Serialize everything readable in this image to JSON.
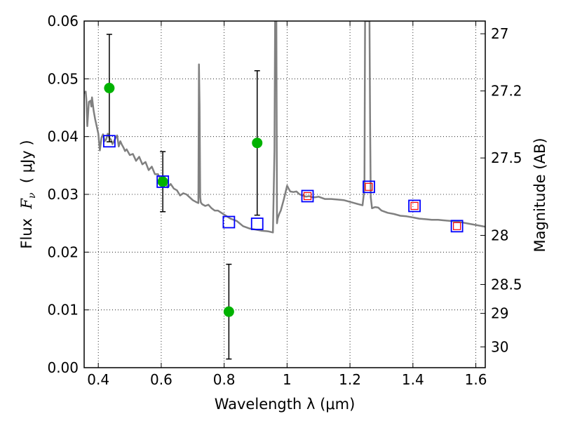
{
  "chart_data": {
    "type": "scatter",
    "xlabel": "Wavelength  λ (μm)",
    "ylabel": "Flux  F_ν  ( μJy )",
    "ylabel_parts": {
      "prefix": "Flux  ",
      "sym": "F",
      "sub": "ν",
      "suffix": "  ( μJy )"
    },
    "y2label": "Magnitude (AB)",
    "xlim": [
      0.355,
      1.63
    ],
    "ylim": [
      0.0,
      0.06
    ],
    "grid": true,
    "x_ticks": [
      {
        "value": 0.4,
        "label": "0.4"
      },
      {
        "value": 0.6,
        "label": "0.6"
      },
      {
        "value": 0.8,
        "label": "0.8"
      },
      {
        "value": 1.0,
        "label": "1"
      },
      {
        "value": 1.2,
        "label": "1.2"
      },
      {
        "value": 1.4,
        "label": "1.4"
      },
      {
        "value": 1.6,
        "label": "1.6"
      }
    ],
    "y_ticks": [
      {
        "value": 0.0,
        "label": "0.00"
      },
      {
        "value": 0.01,
        "label": "0.01"
      },
      {
        "value": 0.02,
        "label": "0.02"
      },
      {
        "value": 0.03,
        "label": "0.03"
      },
      {
        "value": 0.04,
        "label": "0.04"
      },
      {
        "value": 0.05,
        "label": "0.05"
      },
      {
        "value": 0.06,
        "label": "0.06"
      }
    ],
    "mag_ticks": [
      {
        "flux": 0.0578,
        "label": "27"
      },
      {
        "flux": 0.0479,
        "label": "27.2"
      },
      {
        "flux": 0.0363,
        "label": "27.5"
      },
      {
        "flux": 0.0229,
        "label": "28"
      },
      {
        "flux": 0.0144,
        "label": "28.5"
      },
      {
        "flux": 0.0094,
        "label": "29"
      },
      {
        "flux": 0.0036,
        "label": "30"
      }
    ],
    "series": [
      {
        "kind": "sed_model",
        "color": "#808080",
        "x": [
          0.355,
          0.36,
          0.362,
          0.365,
          0.37,
          0.375,
          0.378,
          0.38,
          0.385,
          0.39,
          0.395,
          0.4,
          0.405,
          0.41,
          0.415,
          0.42,
          0.425,
          0.43,
          0.435,
          0.44,
          0.445,
          0.45,
          0.455,
          0.46,
          0.465,
          0.47,
          0.475,
          0.48,
          0.485,
          0.49,
          0.5,
          0.51,
          0.52,
          0.53,
          0.54,
          0.55,
          0.56,
          0.57,
          0.58,
          0.59,
          0.6,
          0.61,
          0.62,
          0.63,
          0.64,
          0.65,
          0.66,
          0.67,
          0.68,
          0.69,
          0.7,
          0.71,
          0.718,
          0.72,
          0.722,
          0.724,
          0.726,
          0.73,
          0.74,
          0.75,
          0.76,
          0.77,
          0.78,
          0.8,
          0.82,
          0.84,
          0.86,
          0.88,
          0.9,
          0.92,
          0.94,
          0.955,
          0.96,
          0.962,
          0.964,
          0.966,
          0.968,
          0.97,
          0.975,
          0.98,
          0.99,
          1.0,
          1.005,
          1.01,
          1.02,
          1.03,
          1.04,
          1.05,
          1.06,
          1.07,
          1.08,
          1.09,
          1.1,
          1.12,
          1.14,
          1.16,
          1.18,
          1.2,
          1.22,
          1.24,
          1.246,
          1.248,
          1.25,
          1.252,
          1.254,
          1.256,
          1.258,
          1.26,
          1.262,
          1.264,
          1.266,
          1.27,
          1.28,
          1.29,
          1.3,
          1.32,
          1.34,
          1.36,
          1.38,
          1.4,
          1.42,
          1.44,
          1.46,
          1.48,
          1.5,
          1.52,
          1.54,
          1.56,
          1.58,
          1.6,
          1.63
        ],
        "y": [
          0.0475,
          0.0478,
          0.0465,
          0.0418,
          0.046,
          0.0462,
          0.0452,
          0.0468,
          0.0445,
          0.043,
          0.0418,
          0.0405,
          0.0376,
          0.0398,
          0.0404,
          0.0392,
          0.0395,
          0.0405,
          0.0398,
          0.0395,
          0.0387,
          0.0392,
          0.0398,
          0.0402,
          0.0383,
          0.0392,
          0.0386,
          0.0381,
          0.0375,
          0.0378,
          0.0368,
          0.037,
          0.0358,
          0.0365,
          0.0352,
          0.0356,
          0.0342,
          0.0348,
          0.0335,
          0.0335,
          0.0322,
          0.0327,
          0.0312,
          0.0318,
          0.031,
          0.0307,
          0.0298,
          0.0302,
          0.03,
          0.0295,
          0.029,
          0.0287,
          0.0285,
          0.0525,
          0.0455,
          0.0295,
          0.0286,
          0.0283,
          0.028,
          0.0282,
          0.0276,
          0.0272,
          0.0272,
          0.0265,
          0.0258,
          0.0254,
          0.0245,
          0.0241,
          0.0239,
          0.0237,
          0.0236,
          0.0234,
          0.0375,
          0.06,
          0.06,
          0.06,
          0.025,
          0.0258,
          0.0266,
          0.0272,
          0.0292,
          0.0315,
          0.031,
          0.0305,
          0.0304,
          0.0305,
          0.03,
          0.0298,
          0.0296,
          0.0297,
          0.0295,
          0.0295,
          0.0296,
          0.0292,
          0.0292,
          0.0291,
          0.029,
          0.0287,
          0.0284,
          0.0281,
          0.031,
          0.06,
          0.06,
          0.06,
          0.06,
          0.06,
          0.06,
          0.06,
          0.06,
          0.042,
          0.0295,
          0.0276,
          0.0278,
          0.0277,
          0.0272,
          0.0268,
          0.0266,
          0.0263,
          0.0262,
          0.026,
          0.0258,
          0.0257,
          0.0256,
          0.0256,
          0.0255,
          0.0254,
          0.0253,
          0.0251,
          0.0249,
          0.0247,
          0.0244
        ]
      },
      {
        "kind": "observed",
        "color": "#00b200",
        "x": [
          0.435,
          0.605,
          0.815,
          0.905
        ],
        "y": [
          0.0484,
          0.0322,
          0.0097,
          0.0389
        ],
        "err": [
          0.0093,
          0.0052,
          0.0082,
          0.0125
        ]
      },
      {
        "kind": "model_photometry",
        "color": "#0000ff",
        "x": [
          0.435,
          0.605,
          0.815,
          0.905,
          1.065,
          1.26,
          1.405,
          1.54
        ],
        "y": [
          0.0392,
          0.0322,
          0.0252,
          0.0249,
          0.0297,
          0.0313,
          0.028,
          0.0245
        ]
      },
      {
        "kind": "model_photometry_alt",
        "color": "#ff0000",
        "x": [
          1.065,
          1.26,
          1.405,
          1.54
        ],
        "y": [
          0.0297,
          0.0313,
          0.028,
          0.0245
        ]
      }
    ]
  }
}
